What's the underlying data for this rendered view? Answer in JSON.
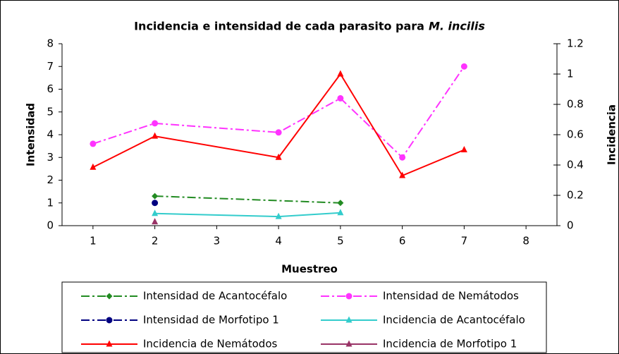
{
  "chart_data": {
    "type": "line",
    "title": "Incidencia e intensidad de cada parasito para",
    "title_species": "M. incilis",
    "xlabel": "Muestreo",
    "ylabel": "Intensidad",
    "y2label": "Incidencia",
    "xlim": [
      0.5,
      8.5
    ],
    "xticks": [
      1,
      2,
      3,
      4,
      5,
      6,
      7,
      8
    ],
    "ylim": [
      0,
      8
    ],
    "yticks": [
      0,
      1,
      2,
      3,
      4,
      5,
      6,
      7,
      8
    ],
    "y2lim": [
      0,
      1.2
    ],
    "y2ticks": [
      0,
      0.2,
      0.4,
      0.6,
      0.8,
      1,
      1.2
    ],
    "series": [
      {
        "name": "Intensidad de Acantocéfalo",
        "color": "#228b22",
        "marker": "diamond",
        "dash": "dashdot",
        "axis": "y",
        "x": [
          2,
          5
        ],
        "values": [
          1.3,
          1.0
        ]
      },
      {
        "name": "Intensidad de Nemátodos",
        "color": "#ff33ff",
        "marker": "circle",
        "dash": "dashdot",
        "axis": "y",
        "x": [
          1,
          2,
          4,
          5,
          6,
          7
        ],
        "values": [
          3.6,
          4.5,
          4.1,
          5.6,
          3.0,
          7.0
        ]
      },
      {
        "name": "Intensidad de Morfotipo 1",
        "color": "#000080",
        "marker": "circle",
        "dash": "dashdot",
        "axis": "y",
        "x": [
          2
        ],
        "values": [
          1.0
        ]
      },
      {
        "name": "Incidencia de Acantocéfalo",
        "color": "#33cccc",
        "marker": "triangle",
        "dash": "solid",
        "axis": "y2",
        "x": [
          2,
          4,
          5
        ],
        "values": [
          0.08,
          0.06,
          0.085
        ]
      },
      {
        "name": "Incidencia  de Nemátodos",
        "color": "#ff0000",
        "marker": "triangle",
        "dash": "solid",
        "axis": "y2",
        "x": [
          1,
          2,
          4,
          5,
          6,
          7
        ],
        "values": [
          0.385,
          0.59,
          0.45,
          1.0,
          0.33,
          0.5
        ]
      },
      {
        "name": "Incidencia de Morfotipo 1",
        "color": "#993366",
        "marker": "triangle",
        "dash": "solid",
        "axis": "y2",
        "x": [
          2
        ],
        "values": [
          0.025
        ]
      }
    ]
  }
}
